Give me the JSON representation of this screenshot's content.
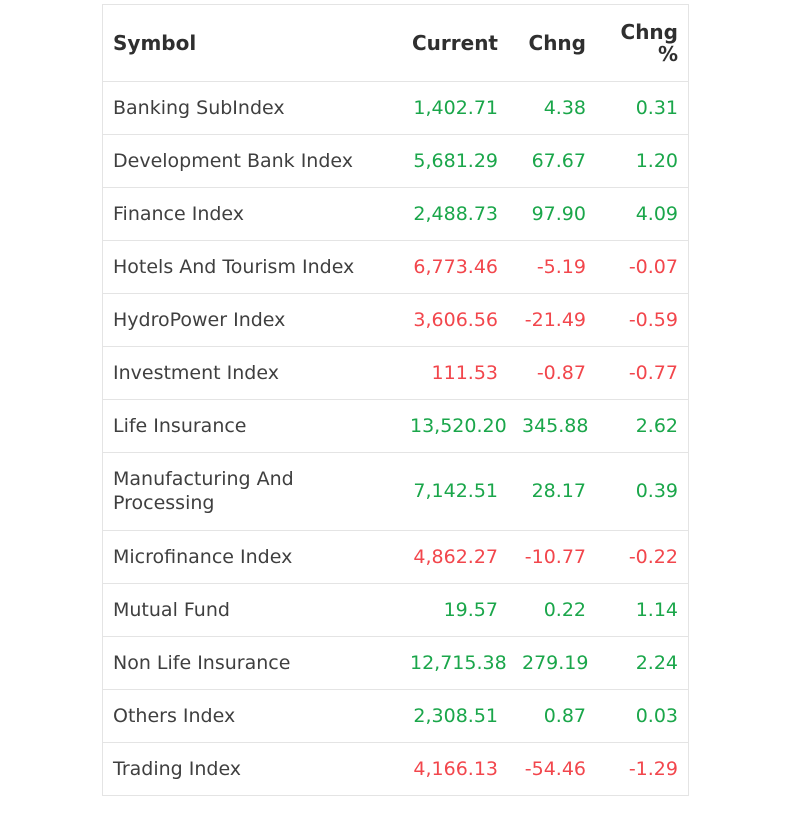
{
  "table": {
    "headers": {
      "symbol": "Symbol",
      "current": "Current",
      "chng": "Chng",
      "chng_pct_line1": "Chng",
      "chng_pct_line2": "%"
    },
    "colors": {
      "up": "#1aa64a",
      "down": "#f2464c"
    },
    "rows": [
      {
        "symbol": "Banking SubIndex",
        "current": "1,402.71",
        "chng": "4.38",
        "pct": "0.31",
        "dir": "up"
      },
      {
        "symbol": "Development Bank Index",
        "current": "5,681.29",
        "chng": "67.67",
        "pct": "1.20",
        "dir": "up"
      },
      {
        "symbol": "Finance Index",
        "current": "2,488.73",
        "chng": "97.90",
        "pct": "4.09",
        "dir": "up"
      },
      {
        "symbol": "Hotels And Tourism Index",
        "current": "6,773.46",
        "chng": "-5.19",
        "pct": "-0.07",
        "dir": "down"
      },
      {
        "symbol": "HydroPower Index",
        "current": "3,606.56",
        "chng": "-21.49",
        "pct": "-0.59",
        "dir": "down"
      },
      {
        "symbol": "Investment Index",
        "current": "111.53",
        "chng": "-0.87",
        "pct": "-0.77",
        "dir": "down"
      },
      {
        "symbol": "Life Insurance",
        "current": "13,520.20",
        "chng": "345.88",
        "pct": "2.62",
        "dir": "up"
      },
      {
        "symbol": "Manufacturing And Processing",
        "current": "7,142.51",
        "chng": "28.17",
        "pct": "0.39",
        "dir": "up"
      },
      {
        "symbol": "Microfinance Index",
        "current": "4,862.27",
        "chng": "-10.77",
        "pct": "-0.22",
        "dir": "down"
      },
      {
        "symbol": "Mutual Fund",
        "current": "19.57",
        "chng": "0.22",
        "pct": "1.14",
        "dir": "up"
      },
      {
        "symbol": "Non Life Insurance",
        "current": "12,715.38",
        "chng": "279.19",
        "pct": "2.24",
        "dir": "up"
      },
      {
        "symbol": "Others Index",
        "current": "2,308.51",
        "chng": "0.87",
        "pct": "0.03",
        "dir": "up"
      },
      {
        "symbol": "Trading Index",
        "current": "4,166.13",
        "chng": "-54.46",
        "pct": "-1.29",
        "dir": "down"
      }
    ]
  }
}
